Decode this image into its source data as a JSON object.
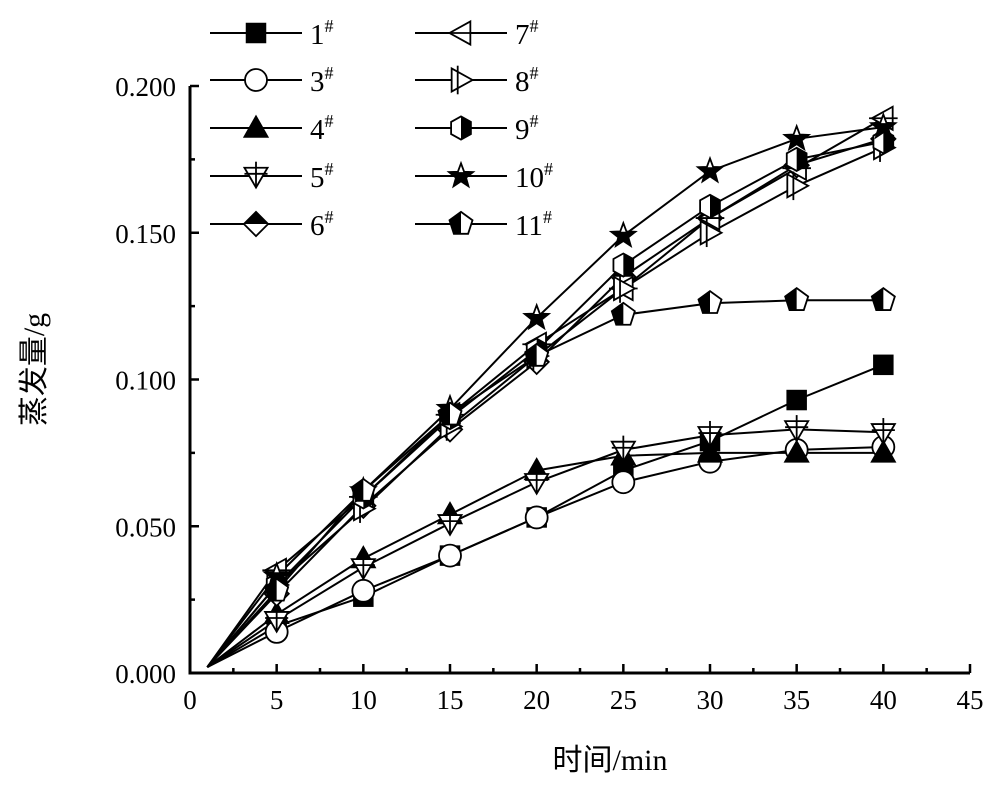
{
  "chart_data": {
    "type": "line",
    "title": "",
    "xlabel": "时间/min",
    "ylabel": "蒸发量/g",
    "xlim": [
      0,
      45
    ],
    "ylim": [
      0.0,
      0.2
    ],
    "xticks": [
      0,
      5,
      10,
      15,
      20,
      25,
      30,
      35,
      40,
      45
    ],
    "xtick_labels": [
      "0",
      "5",
      "10",
      "15",
      "20",
      "25",
      "30",
      "35",
      "40",
      "45"
    ],
    "yticks": [
      0.0,
      0.05,
      0.1,
      0.15,
      0.2
    ],
    "ytick_labels": [
      "0.000",
      "0.050",
      "0.100",
      "0.150",
      "0.200"
    ],
    "grid": false,
    "legend_position": "top-left",
    "legend_columns": 2,
    "x": [
      1,
      5,
      10,
      15,
      20,
      25,
      30,
      35,
      40
    ],
    "series": [
      {
        "name": "1#",
        "label": "1",
        "marker": "square-filled",
        "values": [
          0.002,
          0.016,
          0.026,
          0.04,
          0.053,
          0.069,
          0.079,
          0.093,
          0.105
        ]
      },
      {
        "name": "3#",
        "label": "3",
        "marker": "circle-open",
        "values": [
          0.002,
          0.014,
          0.028,
          0.04,
          0.053,
          0.065,
          0.072,
          0.076,
          0.077
        ]
      },
      {
        "name": "4#",
        "label": "4",
        "marker": "triangle-up-filled",
        "values": [
          0.002,
          0.02,
          0.039,
          0.054,
          0.069,
          0.074,
          0.075,
          0.075,
          0.075
        ]
      },
      {
        "name": "5#",
        "label": "5",
        "marker": "triangle-down-cross",
        "values": [
          0.002,
          0.018,
          0.036,
          0.051,
          0.065,
          0.076,
          0.081,
          0.083,
          0.082
        ]
      },
      {
        "name": "6#",
        "label": "6",
        "marker": "diamond-half",
        "values": [
          0.002,
          0.027,
          0.057,
          0.083,
          0.106,
          0.135,
          0.155,
          0.173,
          0.182
        ]
      },
      {
        "name": "7#",
        "label": "7",
        "marker": "triangle-left-open",
        "values": [
          0.002,
          0.035,
          0.06,
          0.088,
          0.112,
          0.131,
          0.155,
          0.172,
          0.189
        ]
      },
      {
        "name": "8#",
        "label": "8",
        "marker": "triangle-right-bar",
        "values": [
          0.002,
          0.03,
          0.056,
          0.084,
          0.108,
          0.131,
          0.15,
          0.166,
          0.179
        ]
      },
      {
        "name": "9#",
        "label": "9",
        "marker": "hexagon-half",
        "values": [
          0.002,
          0.03,
          0.06,
          0.087,
          0.11,
          0.139,
          0.159,
          0.175,
          0.181
        ]
      },
      {
        "name": "10#",
        "label": "10",
        "marker": "star-half",
        "values": [
          0.002,
          0.033,
          0.062,
          0.09,
          0.121,
          0.149,
          0.171,
          0.182,
          0.186
        ]
      },
      {
        "name": "11#",
        "label": "11",
        "marker": "pentagon-half",
        "values": [
          0.002,
          0.028,
          0.062,
          0.088,
          0.108,
          0.122,
          0.126,
          0.127,
          0.127
        ]
      }
    ]
  }
}
